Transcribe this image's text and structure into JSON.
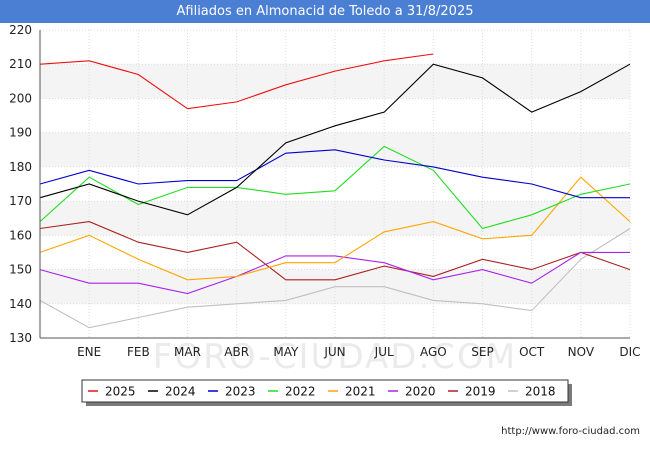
{
  "header": {
    "title": "Afiliados en Almonacid de Toledo a 31/8/2025"
  },
  "footer": {
    "url": "http://www.foro-ciudad.com"
  },
  "watermark": "FORO-CIUDAD.COM",
  "chart_data": {
    "type": "line",
    "title": "Afiliados en Almonacid de Toledo a 31/8/2025",
    "categories": [
      "",
      "ENE",
      "FEB",
      "MAR",
      "ABR",
      "MAY",
      "JUN",
      "JUL",
      "AGO",
      "SEP",
      "OCT",
      "NOV",
      "DIC"
    ],
    "ylim": [
      130,
      220
    ],
    "yticks": [
      130,
      140,
      150,
      160,
      170,
      180,
      190,
      200,
      210,
      220
    ],
    "grid": true,
    "legend_position": "bottom",
    "series": [
      {
        "name": "2025",
        "color": "#ee1111",
        "values": [
          210,
          211,
          207,
          197,
          199,
          204,
          208,
          211,
          213,
          null,
          null,
          null,
          null
        ]
      },
      {
        "name": "2024",
        "color": "#000000",
        "values": [
          171,
          175,
          170,
          166,
          174,
          187,
          192,
          196,
          210,
          206,
          196,
          202,
          210
        ]
      },
      {
        "name": "2023",
        "color": "#0000cc",
        "values": [
          175,
          179,
          175,
          176,
          176,
          184,
          185,
          182,
          180,
          177,
          175,
          171,
          171
        ]
      },
      {
        "name": "2022",
        "color": "#22dd22",
        "values": [
          164,
          177,
          169,
          174,
          174,
          172,
          173,
          186,
          179,
          162,
          166,
          172,
          175
        ]
      },
      {
        "name": "2021",
        "color": "#ffa500",
        "values": [
          155,
          160,
          153,
          147,
          148,
          152,
          152,
          161,
          164,
          159,
          160,
          177,
          164
        ]
      },
      {
        "name": "2020",
        "color": "#aa22ee",
        "values": [
          150,
          146,
          146,
          143,
          148,
          154,
          154,
          152,
          147,
          150,
          146,
          155,
          155
        ]
      },
      {
        "name": "2019",
        "color": "#aa2222",
        "values": [
          162,
          164,
          158,
          155,
          158,
          147,
          147,
          151,
          148,
          153,
          150,
          155,
          150
        ]
      },
      {
        "name": "2018",
        "color": "#c0c0c0",
        "values": [
          141,
          133,
          136,
          139,
          140,
          141,
          145,
          145,
          141,
          140,
          138,
          153,
          162
        ]
      }
    ]
  }
}
